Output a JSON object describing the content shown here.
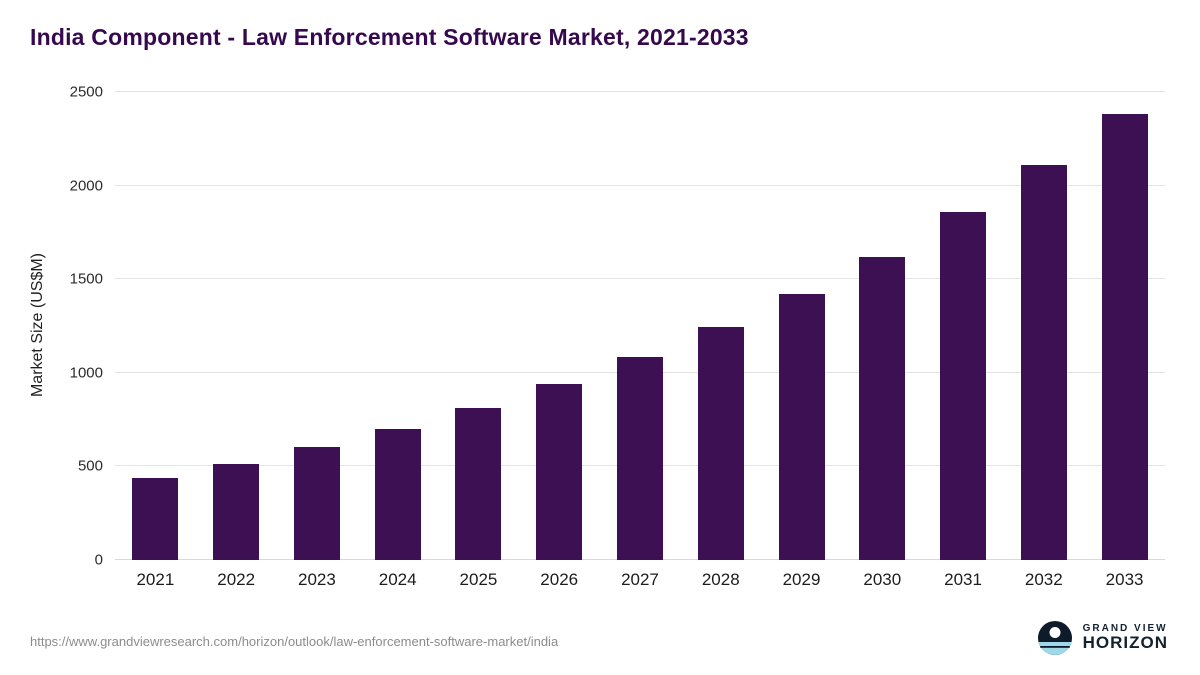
{
  "title": "India Component - Law Enforcement Software Market, 2021-2033",
  "chart_data": {
    "type": "bar",
    "title": "India Component - Law Enforcement Software Market, 2021-2033",
    "categories": [
      "2021",
      "2022",
      "2023",
      "2024",
      "2025",
      "2026",
      "2027",
      "2028",
      "2029",
      "2030",
      "2031",
      "2032",
      "2033"
    ],
    "values": [
      440,
      515,
      605,
      700,
      810,
      940,
      1085,
      1245,
      1420,
      1620,
      1860,
      2110,
      2385
    ],
    "xlabel": "",
    "ylabel": "Market Size (US$M)",
    "ylim": [
      0,
      2500
    ],
    "yticks": [
      0,
      500,
      1000,
      1500,
      2000,
      2500
    ],
    "grid": true,
    "legend": false,
    "bar_color": "#3d1054"
  },
  "footer": {
    "source_url": "https://www.grandviewresearch.com/horizon/outlook/law-enforcement-software-market/india",
    "logo_top": "GRAND VIEW",
    "logo_bottom": "HORIZON"
  },
  "colors": {
    "title": "#36094e",
    "bar": "#3d1054",
    "grid": "#e3e3e3",
    "axis_text": "#2b2b2b",
    "source_text": "#8c8c8c",
    "logo_navy": "#0d1b2a",
    "logo_teal": "#9fd8e9"
  }
}
